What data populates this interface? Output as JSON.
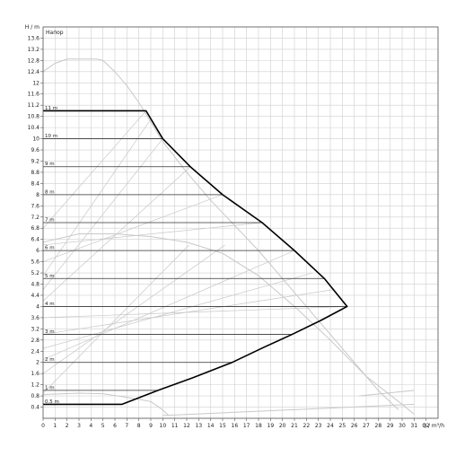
{
  "chart_data": {
    "type": "line",
    "title": "",
    "xlabel": "Q / m³/h",
    "ylabel": "H / m",
    "legend_title": "Напор",
    "xlim": [
      0,
      33
    ],
    "ylim": [
      0,
      14
    ],
    "x_ticks": [
      0,
      1,
      2,
      3,
      4,
      5,
      6,
      7,
      8,
      9,
      10,
      11,
      12,
      13,
      14,
      15,
      16,
      17,
      18,
      19,
      20,
      21,
      22,
      23,
      24,
      25,
      26,
      27,
      28,
      29,
      30,
      31,
      32
    ],
    "y_ticks": [
      0.4,
      0.8,
      1.2,
      1.6,
      2,
      2.4,
      2.8,
      3.2,
      3.6,
      4,
      4.4,
      4.8,
      5.2,
      5.6,
      6,
      6.4,
      6.8,
      7.2,
      7.6,
      8,
      8.4,
      8.8,
      9.2,
      9.6,
      10,
      10.4,
      10.8,
      11.2,
      11.6,
      12,
      12.4,
      12.8,
      13.2,
      13.6
    ],
    "x_tick_labels": [
      "0",
      "1",
      "2",
      "3",
      "4",
      "5",
      "6",
      "7",
      "8",
      "9",
      "10",
      "11",
      "12",
      "13",
      "14",
      "15",
      "16",
      "17",
      "18",
      "19",
      "20",
      "21",
      "22",
      "23",
      "24",
      "25",
      "26",
      "27",
      "28",
      "29",
      "30",
      "31",
      "32"
    ],
    "y_tick_labels": [
      "0.4",
      "0.8",
      "1.2",
      "1.6",
      "2",
      "2.4",
      "2.8",
      "3.2",
      "3.6",
      "4",
      "4.4",
      "4.8",
      "5.2",
      "5.6",
      "6",
      "6.4",
      "6.8",
      "7.2",
      "7.6",
      "8",
      "8.4",
      "8.8",
      "9.2",
      "9.6",
      "10",
      "10.4",
      "10.8",
      "11.2",
      "11.6",
      "12",
      "12.4",
      "12.8",
      "13.2",
      "13.6"
    ],
    "grid": true,
    "setpoints": [
      {
        "label": "0.5 m",
        "h": 0.5,
        "q_end": 6.6
      },
      {
        "label": "1 m",
        "h": 1.0,
        "q_end": 9.6
      },
      {
        "label": "2 m",
        "h": 2.0,
        "q_end": 15.8
      },
      {
        "label": "3 m",
        "h": 3.0,
        "q_end": 20.8
      },
      {
        "label": "4 m",
        "h": 4.0,
        "q_end": 25.4
      },
      {
        "label": "5 m",
        "h": 5.0,
        "q_end": 23.5
      },
      {
        "label": "6 m",
        "h": 6.0,
        "q_end": 21.0
      },
      {
        "label": "7 m",
        "h": 7.0,
        "q_end": 18.3
      },
      {
        "label": "8 m",
        "h": 8.0,
        "q_end": 15.0
      },
      {
        "label": "9 m",
        "h": 9.0,
        "q_end": 12.3
      },
      {
        "label": "10 m",
        "h": 10.0,
        "q_end": 10.0
      },
      {
        "label": "11 m",
        "h": 11.0,
        "q_end": 8.6
      }
    ],
    "series": [
      {
        "role": "operating-envelope",
        "color": "#000000",
        "points": [
          [
            0,
            0.5
          ],
          [
            6.6,
            0.5
          ],
          [
            9.6,
            1.0
          ],
          [
            12.5,
            1.45
          ],
          [
            15.8,
            2.0
          ],
          [
            18.5,
            2.55
          ],
          [
            20.8,
            3.0
          ],
          [
            23.2,
            3.5
          ],
          [
            25.4,
            4.0
          ],
          [
            23.5,
            5.0
          ],
          [
            21.0,
            6.0
          ],
          [
            18.3,
            7.0
          ],
          [
            15.0,
            8.0
          ],
          [
            12.3,
            9.0
          ],
          [
            10.0,
            10.0
          ],
          [
            8.6,
            11.0
          ],
          [
            0,
            11.0
          ]
        ]
      },
      {
        "role": "max-curve",
        "color": "#c8c8c8",
        "points": [
          [
            0,
            12.4
          ],
          [
            1,
            12.7
          ],
          [
            2,
            12.85
          ],
          [
            4.5,
            12.85
          ],
          [
            5,
            12.8
          ],
          [
            6,
            12.4
          ],
          [
            7,
            11.9
          ],
          [
            8,
            11.3
          ],
          [
            9,
            10.6
          ],
          [
            10,
            9.9
          ],
          [
            12,
            8.8
          ],
          [
            14,
            7.8
          ],
          [
            16,
            6.9
          ],
          [
            18,
            6.0
          ],
          [
            20,
            5.0
          ],
          [
            22,
            4.0
          ],
          [
            24,
            3.0
          ],
          [
            26,
            2.0
          ],
          [
            28,
            1.0
          ],
          [
            29.7,
            0.3
          ]
        ]
      },
      {
        "role": "power-curve",
        "color": "#c8c8c8",
        "points": [
          [
            0,
            6.3
          ],
          [
            3,
            6.6
          ],
          [
            6,
            6.6
          ],
          [
            9,
            6.5
          ],
          [
            12,
            6.3
          ],
          [
            15,
            5.9
          ],
          [
            18,
            5.1
          ],
          [
            21,
            4.0
          ],
          [
            24,
            2.8
          ],
          [
            27,
            1.5
          ],
          [
            30,
            0.5
          ],
          [
            31,
            0.15
          ]
        ]
      },
      {
        "role": "min-curve",
        "color": "#c8c8c8",
        "points": [
          [
            0,
            0.85
          ],
          [
            3,
            0.9
          ],
          [
            5,
            0.88
          ],
          [
            7,
            0.75
          ],
          [
            9,
            0.6
          ],
          [
            10,
            0.3
          ],
          [
            10.5,
            0.1
          ]
        ]
      },
      {
        "role": "bottom-guide",
        "color": "#c8c8c8",
        "points": [
          [
            10,
            0.1
          ],
          [
            31,
            0.5
          ]
        ]
      },
      {
        "role": "right-guide",
        "color": "#c8c8c8",
        "points": [
          [
            26.4,
            0.8
          ],
          [
            31,
            1.0
          ]
        ]
      }
    ],
    "guide_lines": [
      {
        "from": [
          0,
          0.9
        ],
        "to": [
          12.2,
          6.2
        ]
      },
      {
        "from": [
          0,
          1.6
        ],
        "to": [
          15.2,
          6.2
        ]
      },
      {
        "from": [
          0,
          2.1
        ],
        "to": [
          21.0,
          6.0
        ]
      },
      {
        "from": [
          0,
          2.5
        ],
        "to": [
          22.5,
          5.2
        ]
      },
      {
        "from": [
          0,
          3.0
        ],
        "to": [
          24.2,
          4.6
        ]
      },
      {
        "from": [
          0,
          3.6
        ],
        "to": [
          25.4,
          4.0
        ]
      },
      {
        "from": [
          0,
          4.2
        ],
        "to": [
          12.3,
          9.0
        ]
      },
      {
        "from": [
          0,
          4.6
        ],
        "to": [
          10.0,
          10.0
        ]
      },
      {
        "from": [
          0,
          5.1
        ],
        "to": [
          9.0,
          10.7
        ]
      },
      {
        "from": [
          0,
          5.6
        ],
        "to": [
          15.0,
          8.0
        ]
      },
      {
        "from": [
          0,
          6.2
        ],
        "to": [
          18.3,
          7.0
        ]
      },
      {
        "from": [
          0,
          6.8
        ],
        "to": [
          8.6,
          11.0
        ]
      }
    ]
  }
}
